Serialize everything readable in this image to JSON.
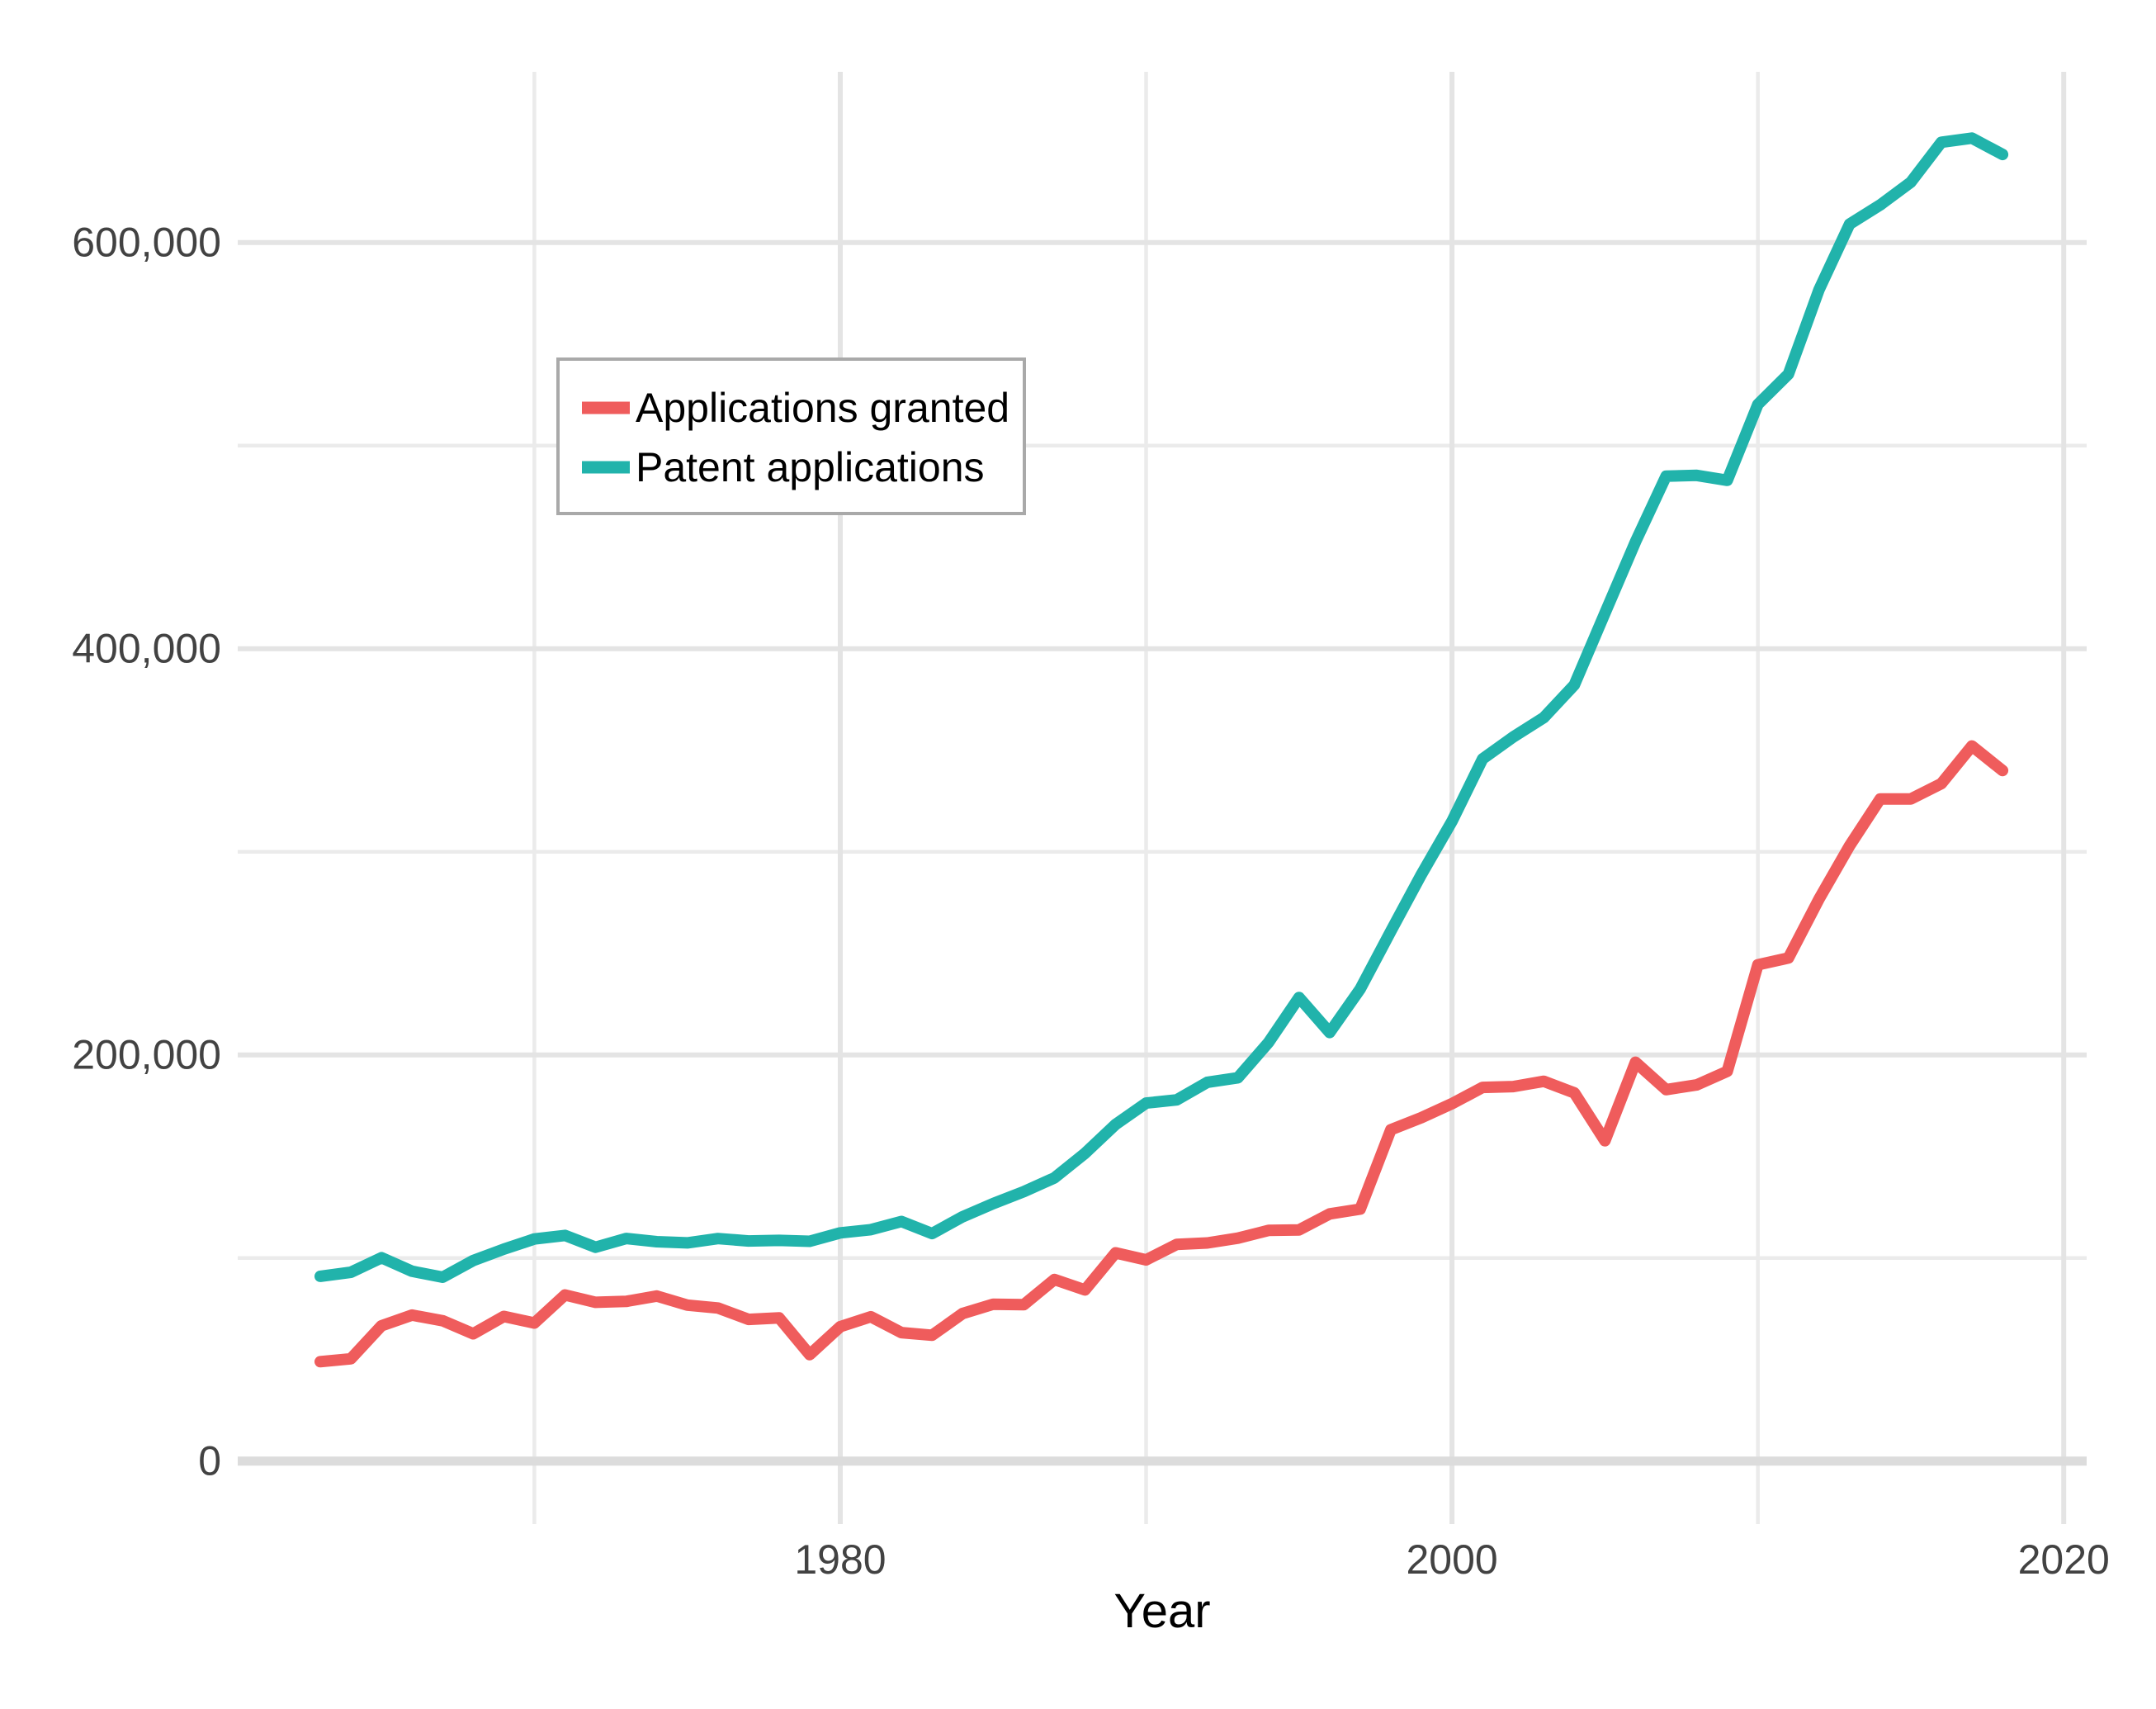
{
  "chart_data": {
    "type": "line",
    "title": "",
    "xlabel": "Year",
    "ylabel": "",
    "grid": true,
    "legend": {
      "position": "inside-upper-left",
      "border_color": "#A9A9A9",
      "background": "#FFFFFF",
      "text_color": "#000000"
    },
    "x_ticks": {
      "values": [
        1980,
        2000,
        2020
      ],
      "labels": [
        "1980",
        "2000",
        "2020"
      ]
    },
    "y_ticks": {
      "values": [
        0,
        200000,
        400000,
        600000
      ],
      "labels": [
        "0",
        "200,000",
        "400,000",
        "600,000"
      ]
    },
    "x_minor_gridlines": [
      1970,
      1990,
      2010
    ],
    "y_minor_gridlines": [
      100000,
      300000,
      500000
    ],
    "xlim": [
      1960.3,
      2020.75
    ],
    "ylim": [
      -31000,
      684000
    ],
    "x": [
      1963,
      1964,
      1965,
      1966,
      1967,
      1968,
      1969,
      1970,
      1971,
      1972,
      1973,
      1974,
      1975,
      1976,
      1977,
      1978,
      1979,
      1980,
      1981,
      1982,
      1983,
      1984,
      1985,
      1986,
      1987,
      1988,
      1989,
      1990,
      1991,
      1992,
      1993,
      1994,
      1995,
      1996,
      1997,
      1998,
      1999,
      2000,
      2001,
      2002,
      2003,
      2004,
      2005,
      2006,
      2007,
      2008,
      2009,
      2010,
      2011,
      2012,
      2013,
      2014,
      2015,
      2016,
      2017,
      2018
    ],
    "series": [
      {
        "name": "Applications granted",
        "color": "#EF5C5C",
        "values": [
          48971,
          50389,
          66647,
          71886,
          69098,
          62714,
          71230,
          67964,
          81790,
          78185,
          78622,
          81278,
          76810,
          75388,
          69781,
          70514,
          52413,
          66170,
          71064,
          63276,
          61982,
          72650,
          77245,
          76993,
          89385,
          84272,
          102533,
          99077,
          106696,
          107394,
          109746,
          113587,
          113834,
          121696,
          124069,
          163142,
          169085,
          175979,
          183970,
          184375,
          187012,
          181299,
          157718,
          196405,
          182899,
          185224,
          191927,
          244341,
          247713,
          276788,
          302948,
          326032,
          325979,
          333583,
          352049,
          339992
        ]
      },
      {
        "name": "Patent applications",
        "color": "#21B3AB",
        "values": [
          90982,
          92971,
          100150,
          93482,
          90544,
          98737,
          104357,
          109359,
          111095,
          105300,
          109622,
          108011,
          107456,
          109580,
          108377,
          108648,
          108209,
          112379,
          113966,
          117987,
          112040,
          120276,
          126788,
          132665,
          139455,
          151491,
          165748,
          176264,
          177830,
          186507,
          188739,
          206090,
          228238,
          211013,
          232424,
          260889,
          288811,
          315015,
          345732,
          356493,
          366043,
          382139,
          417508,
          452633,
          484955,
          485312,
          482871,
          520277,
          535188,
          576763,
          609052,
          618457,
          629647,
          649319,
          651355,
          643303
        ]
      }
    ],
    "colors": {
      "grid_major": "#E4E4E4",
      "grid_minor": "#EBEBEB",
      "zero_line": "#DCDCDC",
      "axis_text": "#424242",
      "axis_title": "#000000"
    }
  }
}
